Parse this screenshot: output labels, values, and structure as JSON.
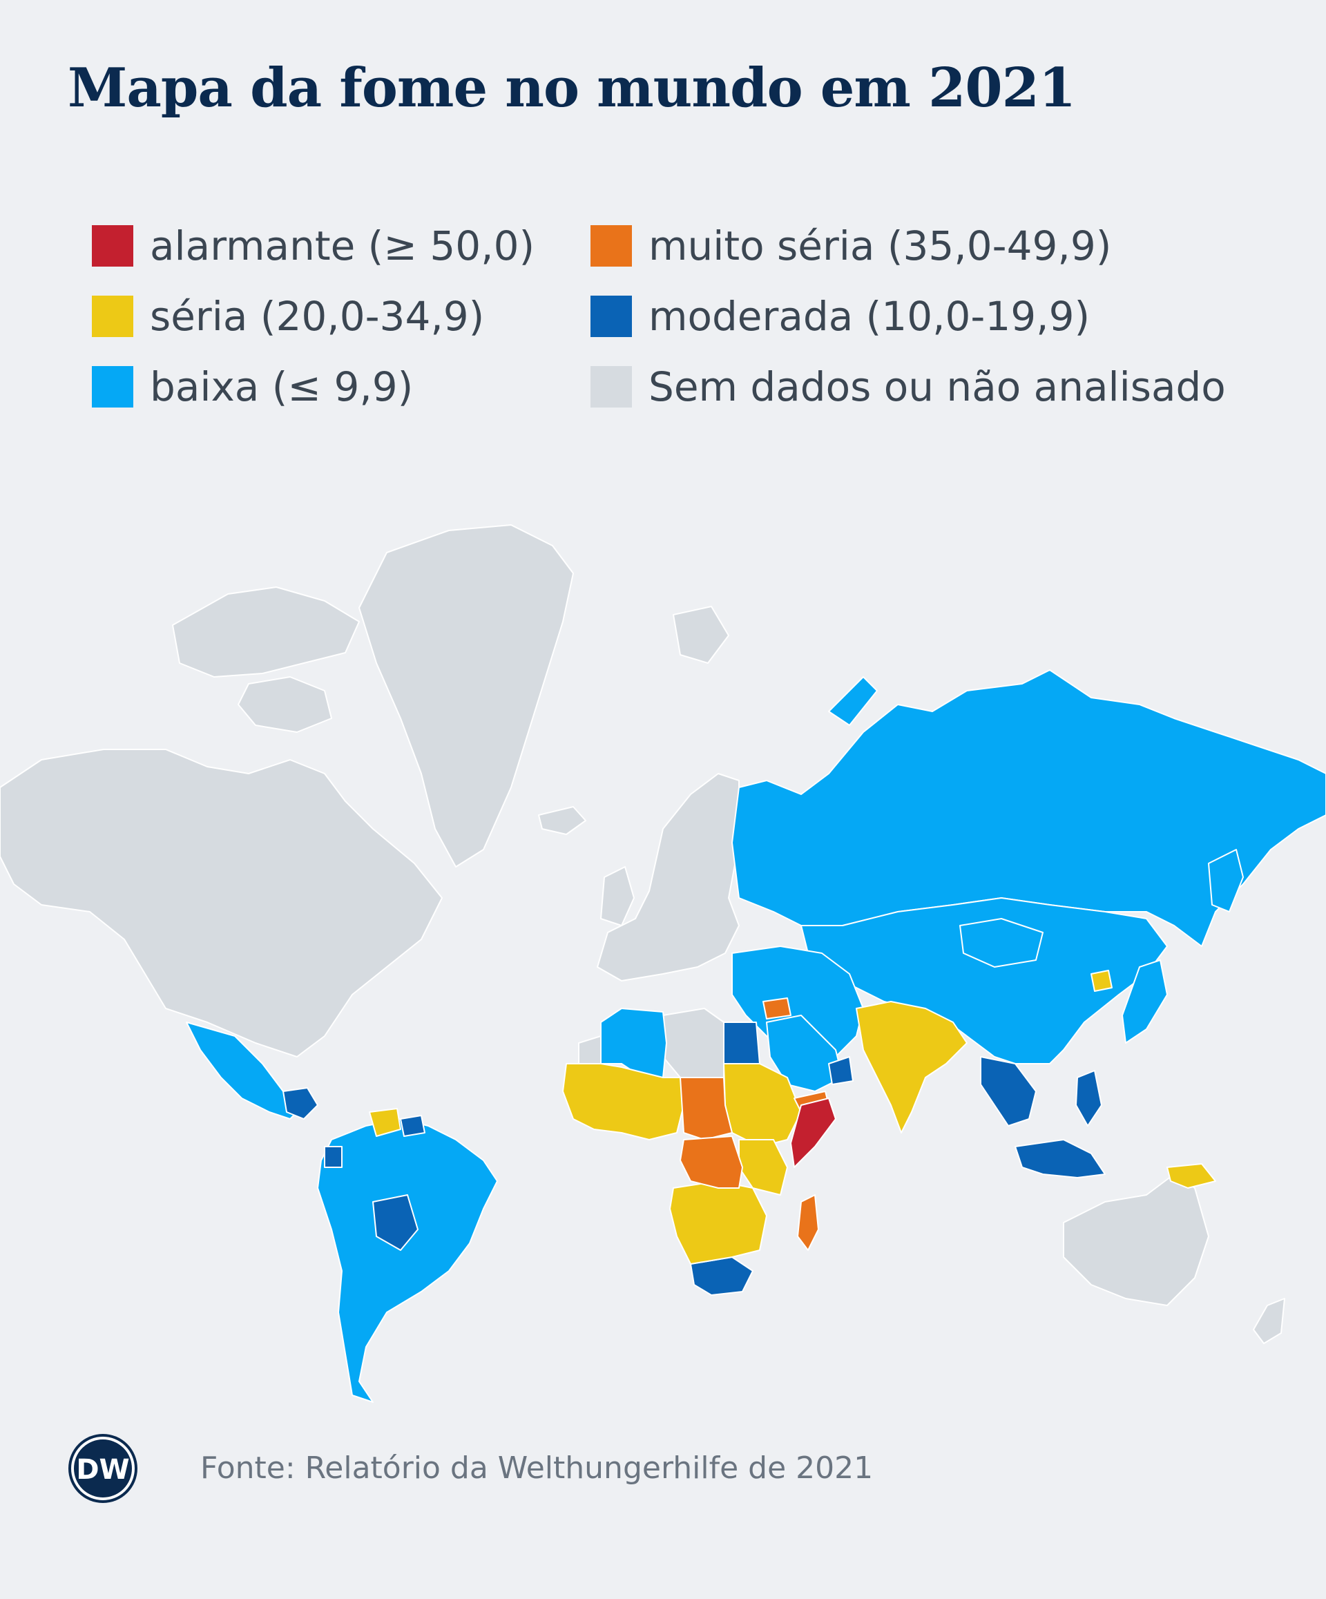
{
  "title": "Mapa da fome no mundo em 2021",
  "legend": [
    {
      "label": "alarmante   (≥ 50,0)",
      "color": "#c3202f"
    },
    {
      "label": "muito séria (35,0-49,9)",
      "color": "#e9731a"
    },
    {
      "label": "séria (20,0-34,9)",
      "color": "#edc916"
    },
    {
      "label": "moderada (10,0-19,9)",
      "color": "#0a63b5"
    },
    {
      "label": "baixa (≤ 9,9)",
      "color": "#05a8f5"
    },
    {
      "label": "Sem dados ou não analisado",
      "color": "#d6dbe0"
    }
  ],
  "colors": {
    "background": "#eef0f3",
    "title": "#0b2a4f",
    "no_data": "#d6dbe0",
    "low": "#05a8f5",
    "moderate": "#0a63b5",
    "serious": "#edc916",
    "very_serious": "#e9731a",
    "alarming": "#c3202f"
  },
  "source": "Fonte: Relatório da Welthungerhilfe de 2021",
  "logo": {
    "text": "DW",
    "icon": "dw-logo-icon"
  }
}
